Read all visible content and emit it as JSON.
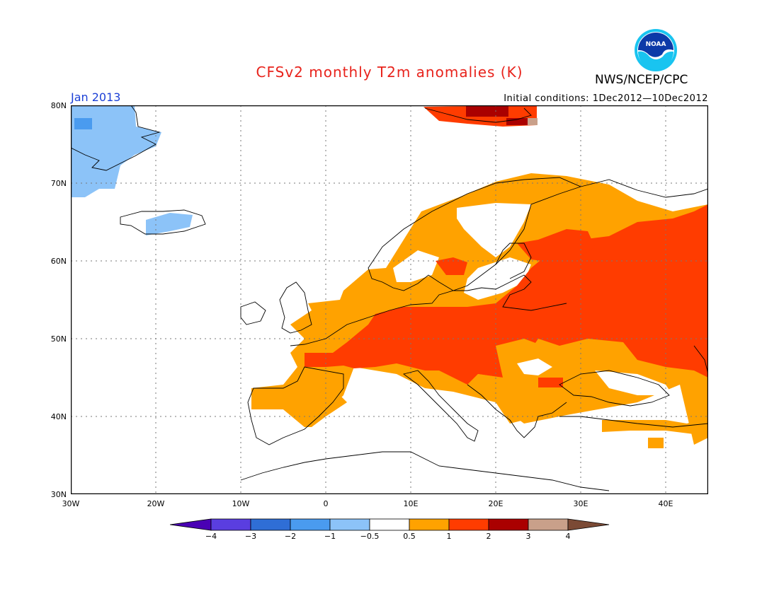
{
  "header": {
    "title": "CFSv2 monthly T2m anomalies (K)",
    "agency": "NWS/NCEP/CPC",
    "month": "Jan 2013",
    "initial_conditions": "Initial conditions: 1Dec2012—10Dec2012",
    "logo_text": "NOAA"
  },
  "axes": {
    "lat_labels": [
      "80N",
      "70N",
      "60N",
      "50N",
      "40N",
      "30N"
    ],
    "lon_labels": [
      "30W",
      "20W",
      "10W",
      "0",
      "10E",
      "20E",
      "30E",
      "40E"
    ]
  },
  "colorbar": {
    "labels": [
      "−4",
      "−3",
      "−2",
      "−1",
      "−0.5",
      "0.5",
      "1",
      "2",
      "3",
      "4"
    ],
    "colors": [
      "#4a00b4",
      "#5a3ee0",
      "#2f6ed6",
      "#4a9bef",
      "#8cc3f8",
      "#ffffff",
      "#ffa200",
      "#ff3c00",
      "#aa0000",
      "#c9a08a",
      "#7b4a35"
    ]
  },
  "legend_colors": {
    "cold_light": "#8cc3f8",
    "cold_mid": "#4a9bef",
    "warm_1": "#ffa200",
    "warm_2": "#ff3c00",
    "warm_3": "#aa0000",
    "warm_4": "#c9a08a"
  }
}
